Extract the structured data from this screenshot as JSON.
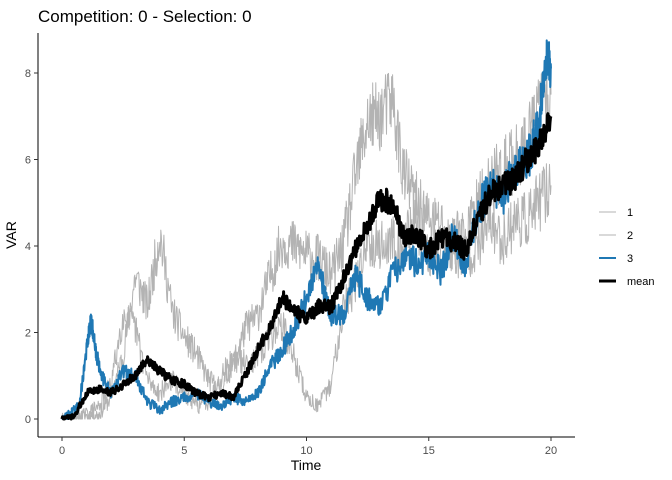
{
  "chart_data": {
    "type": "line",
    "title": "Competition: 0 - Selection: 0",
    "xlabel": "Time",
    "ylabel": "VAR",
    "xlim": [
      0,
      20
    ],
    "ylim": [
      0,
      8.7
    ],
    "x_ticks": [
      0,
      5,
      10,
      15,
      20
    ],
    "y_ticks": [
      0,
      2,
      4,
      6,
      8
    ],
    "grid": false,
    "legend_position": "right",
    "series": [
      {
        "name": "1",
        "color": "#b3b3b3",
        "x": [
          0,
          0.5,
          1,
          1.5,
          2,
          2.5,
          3,
          3.5,
          4,
          4.5,
          5,
          5.5,
          6,
          6.5,
          7,
          7.5,
          8,
          8.5,
          9,
          9.5,
          10,
          10.5,
          11,
          11.5,
          12,
          12.5,
          13,
          13.5,
          14,
          14.5,
          15,
          15.5,
          16,
          16.5,
          17,
          17.5,
          18,
          18.5,
          19,
          19.5,
          20
        ],
        "values": [
          0,
          0.02,
          0.08,
          0.1,
          0.5,
          1.5,
          3.3,
          2.6,
          4.3,
          2.5,
          1.9,
          1.5,
          0.9,
          0.7,
          1.3,
          2.1,
          2.4,
          3.3,
          4.1,
          4.0,
          3.8,
          3.7,
          3.3,
          4.0,
          5.6,
          6.9,
          7.0,
          7.4,
          5.6,
          5.0,
          4.6,
          4.5,
          3.8,
          3.8,
          4.0,
          4.6,
          4.1,
          4.6,
          4.6,
          5.0,
          5.4
        ]
      },
      {
        "name": "2",
        "color": "#b3b3b3",
        "x": [
          0,
          0.5,
          1,
          1.5,
          2,
          2.5,
          3,
          3.5,
          4,
          4.5,
          5,
          5.5,
          6,
          6.5,
          7,
          7.5,
          8,
          8.5,
          9,
          9.5,
          10,
          10.5,
          11,
          11.5,
          12,
          12.5,
          13,
          13.5,
          14,
          14.5,
          15,
          15.5,
          16,
          16.5,
          17,
          17.5,
          18,
          18.5,
          19,
          19.5,
          20
        ],
        "values": [
          0,
          0.05,
          0.1,
          0.3,
          0.8,
          2.4,
          2.1,
          0.9,
          0.6,
          0.9,
          0.6,
          0.3,
          0.4,
          1.0,
          1.4,
          1.3,
          1.4,
          1.9,
          2.2,
          1.4,
          0.5,
          0.3,
          0.8,
          2.6,
          3.1,
          4.2,
          4.0,
          4.1,
          4.1,
          4.6,
          3.7,
          4.1,
          4.2,
          4.2,
          4.9,
          5.5,
          5.7,
          6.0,
          6.4,
          7.2,
          7.5
        ]
      },
      {
        "name": "3",
        "color": "#1f78b4",
        "x": [
          0,
          0.3,
          0.7,
          1,
          1.2,
          1.4,
          1.7,
          2,
          2.5,
          3,
          3.5,
          4,
          4.5,
          5,
          5.5,
          6,
          6.5,
          7,
          7.5,
          8,
          8.5,
          9,
          9.5,
          10,
          10.5,
          11,
          11.5,
          12,
          12.5,
          13,
          13.5,
          14,
          14.5,
          15,
          15.5,
          16,
          16.5,
          17,
          17.5,
          18,
          18.5,
          19,
          19.5,
          19.8,
          20
        ],
        "values": [
          0,
          0.1,
          0.3,
          1.6,
          2.3,
          1.5,
          0.9,
          0.6,
          1.1,
          1.0,
          0.4,
          0.2,
          0.4,
          0.5,
          0.6,
          0.4,
          0.3,
          0.5,
          0.4,
          0.6,
          1.2,
          1.6,
          2.1,
          2.8,
          3.5,
          2.4,
          2.4,
          3.3,
          2.8,
          2.6,
          3.3,
          3.8,
          3.6,
          3.8,
          3.4,
          4.3,
          3.5,
          4.8,
          5.4,
          5.1,
          5.8,
          5.9,
          6.8,
          8.4,
          8.1
        ]
      },
      {
        "name": "mean",
        "color": "#000000",
        "x": [
          0,
          0.5,
          1,
          1.5,
          2,
          2.5,
          3,
          3.5,
          4,
          4.5,
          5,
          5.5,
          6,
          6.5,
          7,
          7.5,
          8,
          8.5,
          9,
          9.5,
          10,
          10.5,
          11,
          11.5,
          12,
          12.5,
          13,
          13.5,
          14,
          14.5,
          15,
          15.5,
          16,
          16.5,
          17,
          17.5,
          18,
          18.5,
          19,
          19.5,
          20
        ],
        "values": [
          0,
          0.05,
          0.6,
          0.7,
          0.6,
          0.8,
          1.0,
          1.4,
          1.1,
          0.9,
          0.8,
          0.6,
          0.5,
          0.6,
          0.5,
          1.0,
          1.6,
          2.1,
          2.8,
          2.5,
          2.3,
          2.6,
          2.6,
          3.2,
          3.9,
          4.5,
          5.1,
          5.0,
          4.2,
          4.3,
          3.9,
          4.2,
          4.1,
          3.9,
          4.6,
          5.2,
          5.4,
          5.5,
          6.0,
          6.3,
          7.0
        ]
      }
    ]
  }
}
